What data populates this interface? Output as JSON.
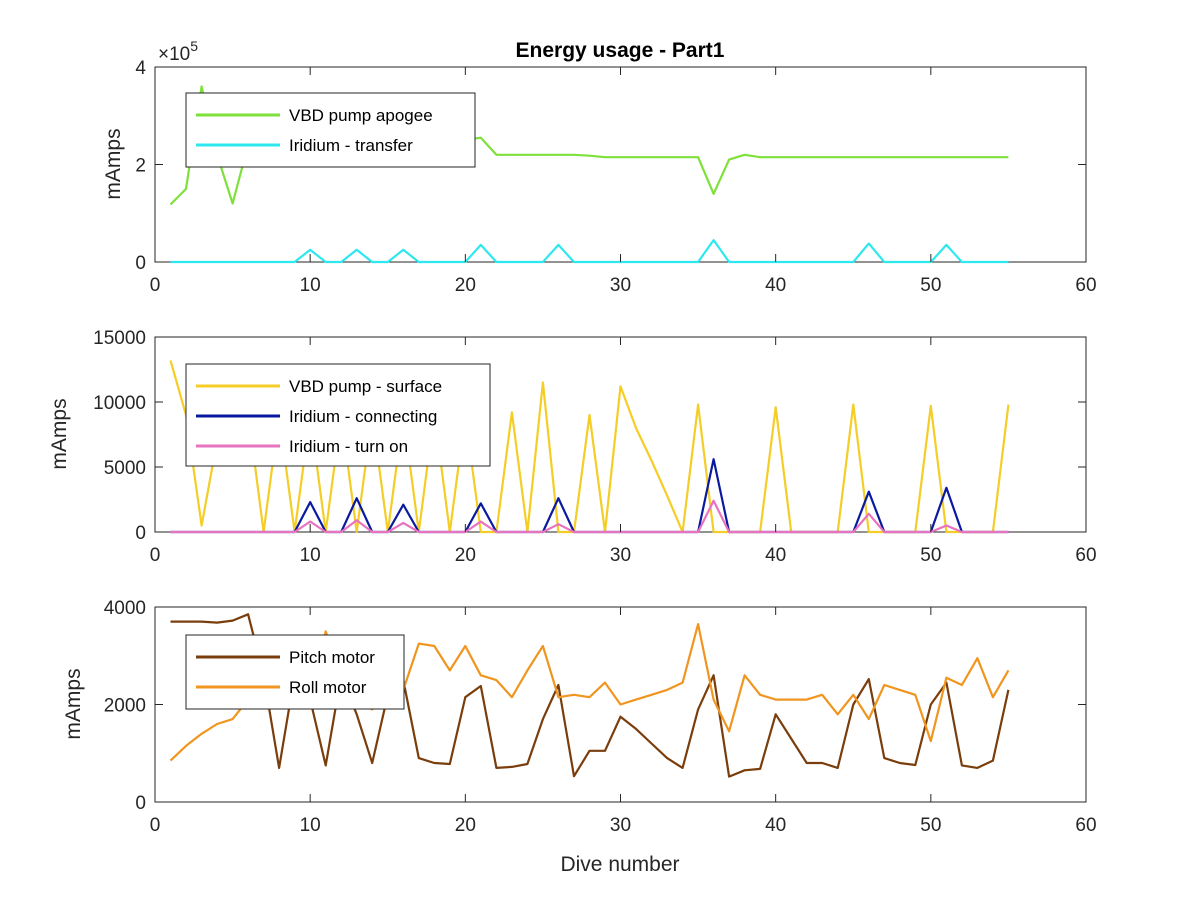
{
  "chart_data": [
    {
      "type": "line",
      "title": "Energy usage - Part1",
      "xlabel": "",
      "ylabel": "mAmps",
      "xlim": [
        0,
        60
      ],
      "ylim": [
        0,
        4
      ],
      "x_ticks": [
        "0",
        "10",
        "20",
        "30",
        "40",
        "50",
        "60"
      ],
      "y_ticks": [
        "0",
        "2",
        "4"
      ],
      "y_exponent": "×10",
      "y_exponent_power": "5",
      "y_scale_factor": 100000,
      "legend_position": "top-left",
      "grid": false,
      "x": [
        1,
        2,
        3,
        4,
        5,
        6,
        7,
        8,
        9,
        10,
        11,
        12,
        13,
        14,
        15,
        16,
        17,
        18,
        19,
        20,
        21,
        22,
        23,
        24,
        25,
        26,
        27,
        28,
        29,
        30,
        31,
        32,
        33,
        34,
        35,
        36,
        37,
        38,
        39,
        40,
        41,
        42,
        43,
        44,
        45,
        46,
        47,
        48,
        49,
        50,
        51,
        52,
        53,
        54,
        55
      ],
      "series": [
        {
          "name": "VBD pump apogee",
          "color": "#7ee13a",
          "values": [
            1.18,
            1.5,
            3.6,
            2.2,
            1.2,
            2.4,
            2.3,
            2.5,
            2.4,
            2.6,
            2.5,
            2.4,
            2.6,
            2.5,
            2.4,
            2.5,
            2.4,
            2.5,
            2.4,
            2.5,
            2.55,
            2.2,
            2.2,
            2.2,
            2.2,
            2.2,
            2.2,
            2.18,
            2.15,
            2.15,
            2.15,
            2.15,
            2.15,
            2.15,
            2.15,
            1.4,
            2.1,
            2.2,
            2.15,
            2.15,
            2.15,
            2.15,
            2.15,
            2.15,
            2.15,
            2.15,
            2.15,
            2.15,
            2.15,
            2.15,
            2.15,
            2.15,
            2.15,
            2.15,
            2.15
          ]
        },
        {
          "name": "Iridium - transfer",
          "color": "#2ee8f0",
          "values": [
            0,
            0,
            0,
            0,
            0,
            0,
            0,
            0,
            0,
            0.25,
            0,
            0,
            0.25,
            0,
            0,
            0.25,
            0,
            0,
            0,
            0,
            0.35,
            0,
            0,
            0,
            0,
            0.35,
            0,
            0,
            0,
            0,
            0,
            0,
            0,
            0,
            0,
            0.45,
            0,
            0,
            0,
            0,
            0,
            0,
            0,
            0,
            0,
            0.38,
            0,
            0,
            0,
            0,
            0.35,
            0,
            0,
            0,
            0
          ]
        }
      ]
    },
    {
      "type": "line",
      "title": "",
      "xlabel": "",
      "ylabel": "mAmps",
      "xlim": [
        0,
        60
      ],
      "ylim": [
        0,
        15000
      ],
      "x_ticks": [
        "0",
        "10",
        "20",
        "30",
        "40",
        "50",
        "60"
      ],
      "y_ticks": [
        "0",
        "5000",
        "10000",
        "15000"
      ],
      "legend_position": "top-left",
      "grid": false,
      "x": [
        1,
        2,
        3,
        4,
        5,
        6,
        7,
        8,
        9,
        10,
        11,
        12,
        13,
        14,
        15,
        16,
        17,
        18,
        19,
        20,
        21,
        22,
        23,
        24,
        25,
        26,
        27,
        28,
        29,
        30,
        31,
        32,
        33,
        34,
        35,
        36,
        37,
        38,
        39,
        40,
        41,
        42,
        43,
        44,
        45,
        46,
        47,
        48,
        49,
        50,
        51,
        52,
        53,
        54,
        55
      ],
      "series": [
        {
          "name": "VBD pump - surface",
          "color": "#f5cd27",
          "values": [
            13200,
            9000,
            500,
            7000,
            7500,
            9200,
            0,
            9000,
            0,
            9000,
            0,
            9000,
            0,
            9000,
            0,
            9000,
            0,
            9200,
            0,
            9000,
            0,
            0,
            9200,
            0,
            11500,
            0,
            0,
            9000,
            0,
            11200,
            8000,
            5500,
            2800,
            0,
            9800,
            0,
            0,
            0,
            0,
            9600,
            0,
            0,
            0,
            0,
            9800,
            0,
            0,
            0,
            0,
            9700,
            0,
            0,
            0,
            0,
            9800
          ]
        },
        {
          "name": "Iridium - connecting",
          "color": "#0a1aa0",
          "values": [
            0,
            0,
            0,
            0,
            0,
            0,
            0,
            0,
            0,
            2300,
            0,
            0,
            2600,
            0,
            0,
            2100,
            0,
            0,
            0,
            0,
            2200,
            0,
            0,
            0,
            0,
            2600,
            0,
            0,
            0,
            0,
            0,
            0,
            0,
            0,
            0,
            5600,
            0,
            0,
            0,
            0,
            0,
            0,
            0,
            0,
            0,
            3100,
            0,
            0,
            0,
            0,
            3400,
            0,
            0,
            0,
            0
          ]
        },
        {
          "name": "Iridium - turn on",
          "color": "#e873c0",
          "values": [
            0,
            0,
            0,
            0,
            0,
            0,
            0,
            0,
            0,
            800,
            0,
            0,
            900,
            0,
            0,
            700,
            0,
            0,
            0,
            0,
            800,
            0,
            0,
            0,
            0,
            600,
            0,
            0,
            0,
            0,
            0,
            0,
            0,
            0,
            0,
            2400,
            0,
            0,
            0,
            0,
            0,
            0,
            0,
            0,
            0,
            1400,
            0,
            0,
            0,
            0,
            500,
            0,
            0,
            0,
            0
          ]
        }
      ]
    },
    {
      "type": "line",
      "title": "",
      "xlabel": "Dive number",
      "ylabel": "mAmps",
      "xlim": [
        0,
        60
      ],
      "ylim": [
        0,
        4000
      ],
      "x_ticks": [
        "0",
        "10",
        "20",
        "30",
        "40",
        "50",
        "60"
      ],
      "y_ticks": [
        "0",
        "2000",
        "4000"
      ],
      "legend_position": "top-left",
      "grid": false,
      "x": [
        1,
        2,
        3,
        4,
        5,
        6,
        7,
        8,
        9,
        10,
        11,
        12,
        13,
        14,
        15,
        16,
        17,
        18,
        19,
        20,
        21,
        22,
        23,
        24,
        25,
        26,
        27,
        28,
        29,
        30,
        31,
        32,
        33,
        34,
        35,
        36,
        37,
        38,
        39,
        40,
        41,
        42,
        43,
        44,
        45,
        46,
        47,
        48,
        49,
        50,
        51,
        52,
        53,
        54,
        55
      ],
      "series": [
        {
          "name": "Pitch motor",
          "color": "#7a3d0c",
          "values": [
            3700,
            3700,
            3700,
            3680,
            3720,
            3850,
            2600,
            700,
            2600,
            2100,
            750,
            2600,
            1800,
            800,
            2200,
            2500,
            900,
            800,
            780,
            2150,
            2380,
            700,
            720,
            780,
            1700,
            2400,
            530,
            1050,
            1050,
            1750,
            1500,
            1200,
            900,
            700,
            1900,
            2600,
            520,
            650,
            680,
            1800,
            1300,
            800,
            800,
            700,
            2000,
            2520,
            900,
            800,
            760,
            2000,
            2450,
            750,
            700,
            850,
            2300
          ]
        },
        {
          "name": "Roll motor",
          "color": "#f0951f",
          "values": [
            850,
            1150,
            1400,
            1600,
            1700,
            2100,
            2300,
            2600,
            2400,
            2100,
            3500,
            2600,
            2100,
            1900,
            2200,
            2300,
            3250,
            3200,
            2700,
            3200,
            2600,
            2500,
            2150,
            2700,
            3200,
            2150,
            2200,
            2150,
            2450,
            2000,
            2100,
            2200,
            2300,
            2450,
            3650,
            2100,
            1450,
            2600,
            2200,
            2100,
            2100,
            2100,
            2200,
            1800,
            2200,
            1700,
            2400,
            2300,
            2200,
            1250,
            2550,
            2400,
            2950,
            2150,
            2700
          ]
        }
      ]
    }
  ]
}
